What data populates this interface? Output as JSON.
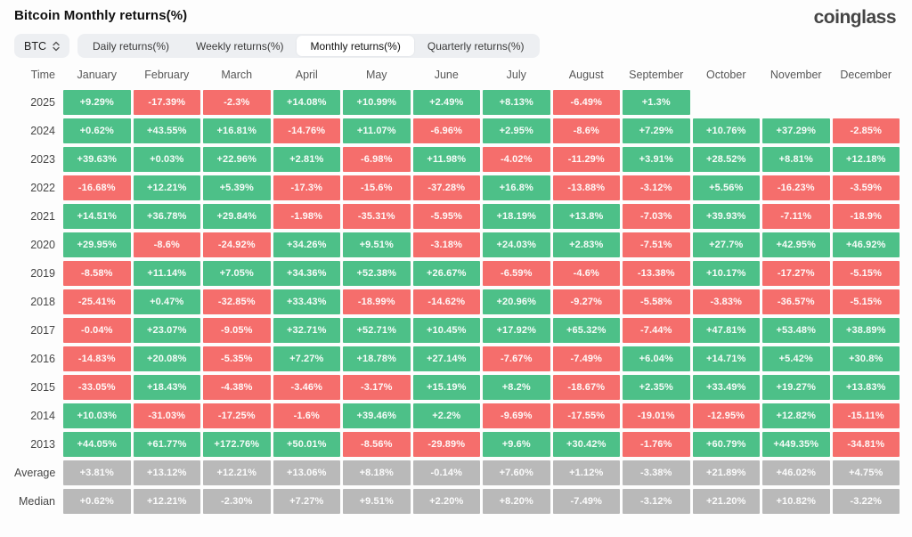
{
  "header": {
    "title": "Bitcoin Monthly returns(%)",
    "logo": "coinglass"
  },
  "controls": {
    "symbol_select": {
      "value": "BTC",
      "icon": "chevron-up-down"
    },
    "tabs": [
      {
        "label": "Daily returns(%)",
        "active": false
      },
      {
        "label": "Weekly returns(%)",
        "active": false
      },
      {
        "label": "Monthly returns(%)",
        "active": true
      },
      {
        "label": "Quarterly returns(%)",
        "active": false
      }
    ]
  },
  "chart_data": {
    "type": "heatmap",
    "title": "Bitcoin Monthly returns(%)",
    "row_header": "Time",
    "columns": [
      "January",
      "February",
      "March",
      "April",
      "May",
      "June",
      "July",
      "August",
      "September",
      "October",
      "November",
      "December"
    ],
    "rows": [
      {
        "label": "2025",
        "values": [
          "+9.29%",
          "-17.39%",
          "-2.3%",
          "+14.08%",
          "+10.99%",
          "+2.49%",
          "+8.13%",
          "-6.49%",
          "+1.3%",
          "",
          "",
          ""
        ]
      },
      {
        "label": "2024",
        "values": [
          "+0.62%",
          "+43.55%",
          "+16.81%",
          "-14.76%",
          "+11.07%",
          "-6.96%",
          "+2.95%",
          "-8.6%",
          "+7.29%",
          "+10.76%",
          "+37.29%",
          "-2.85%"
        ]
      },
      {
        "label": "2023",
        "values": [
          "+39.63%",
          "+0.03%",
          "+22.96%",
          "+2.81%",
          "-6.98%",
          "+11.98%",
          "-4.02%",
          "-11.29%",
          "+3.91%",
          "+28.52%",
          "+8.81%",
          "+12.18%"
        ]
      },
      {
        "label": "2022",
        "values": [
          "-16.68%",
          "+12.21%",
          "+5.39%",
          "-17.3%",
          "-15.6%",
          "-37.28%",
          "+16.8%",
          "-13.88%",
          "-3.12%",
          "+5.56%",
          "-16.23%",
          "-3.59%"
        ]
      },
      {
        "label": "2021",
        "values": [
          "+14.51%",
          "+36.78%",
          "+29.84%",
          "-1.98%",
          "-35.31%",
          "-5.95%",
          "+18.19%",
          "+13.8%",
          "-7.03%",
          "+39.93%",
          "-7.11%",
          "-18.9%"
        ]
      },
      {
        "label": "2020",
        "values": [
          "+29.95%",
          "-8.6%",
          "-24.92%",
          "+34.26%",
          "+9.51%",
          "-3.18%",
          "+24.03%",
          "+2.83%",
          "-7.51%",
          "+27.7%",
          "+42.95%",
          "+46.92%"
        ]
      },
      {
        "label": "2019",
        "values": [
          "-8.58%",
          "+11.14%",
          "+7.05%",
          "+34.36%",
          "+52.38%",
          "+26.67%",
          "-6.59%",
          "-4.6%",
          "-13.38%",
          "+10.17%",
          "-17.27%",
          "-5.15%"
        ]
      },
      {
        "label": "2018",
        "values": [
          "-25.41%",
          "+0.47%",
          "-32.85%",
          "+33.43%",
          "-18.99%",
          "-14.62%",
          "+20.96%",
          "-9.27%",
          "-5.58%",
          "-3.83%",
          "-36.57%",
          "-5.15%"
        ]
      },
      {
        "label": "2017",
        "values": [
          "-0.04%",
          "+23.07%",
          "-9.05%",
          "+32.71%",
          "+52.71%",
          "+10.45%",
          "+17.92%",
          "+65.32%",
          "-7.44%",
          "+47.81%",
          "+53.48%",
          "+38.89%"
        ]
      },
      {
        "label": "2016",
        "values": [
          "-14.83%",
          "+20.08%",
          "-5.35%",
          "+7.27%",
          "+18.78%",
          "+27.14%",
          "-7.67%",
          "-7.49%",
          "+6.04%",
          "+14.71%",
          "+5.42%",
          "+30.8%"
        ]
      },
      {
        "label": "2015",
        "values": [
          "-33.05%",
          "+18.43%",
          "-4.38%",
          "-3.46%",
          "-3.17%",
          "+15.19%",
          "+8.2%",
          "-18.67%",
          "+2.35%",
          "+33.49%",
          "+19.27%",
          "+13.83%"
        ]
      },
      {
        "label": "2014",
        "values": [
          "+10.03%",
          "-31.03%",
          "-17.25%",
          "-1.6%",
          "+39.46%",
          "+2.2%",
          "-9.69%",
          "-17.55%",
          "-19.01%",
          "-12.95%",
          "+12.82%",
          "-15.11%"
        ]
      },
      {
        "label": "2013",
        "values": [
          "+44.05%",
          "+61.77%",
          "+172.76%",
          "+50.01%",
          "-8.56%",
          "-29.89%",
          "+9.6%",
          "+30.42%",
          "-1.76%",
          "+60.79%",
          "+449.35%",
          "-34.81%"
        ]
      }
    ],
    "summary_rows": [
      {
        "label": "Average",
        "values": [
          "+3.81%",
          "+13.12%",
          "+12.21%",
          "+13.06%",
          "+8.18%",
          "-0.14%",
          "+7.60%",
          "+1.12%",
          "-3.38%",
          "+21.89%",
          "+46.02%",
          "+4.75%"
        ]
      },
      {
        "label": "Median",
        "values": [
          "+0.62%",
          "+12.21%",
          "-2.30%",
          "+7.27%",
          "+9.51%",
          "+2.20%",
          "+8.20%",
          "-7.49%",
          "-3.12%",
          "+21.20%",
          "+10.82%",
          "-3.22%"
        ]
      }
    ],
    "colors": {
      "positive": "#4dc088",
      "negative": "#f56e6c",
      "summary": "#b9b9b9",
      "cell_text": "#ffffff"
    },
    "legend_position": "none",
    "grid": false
  }
}
